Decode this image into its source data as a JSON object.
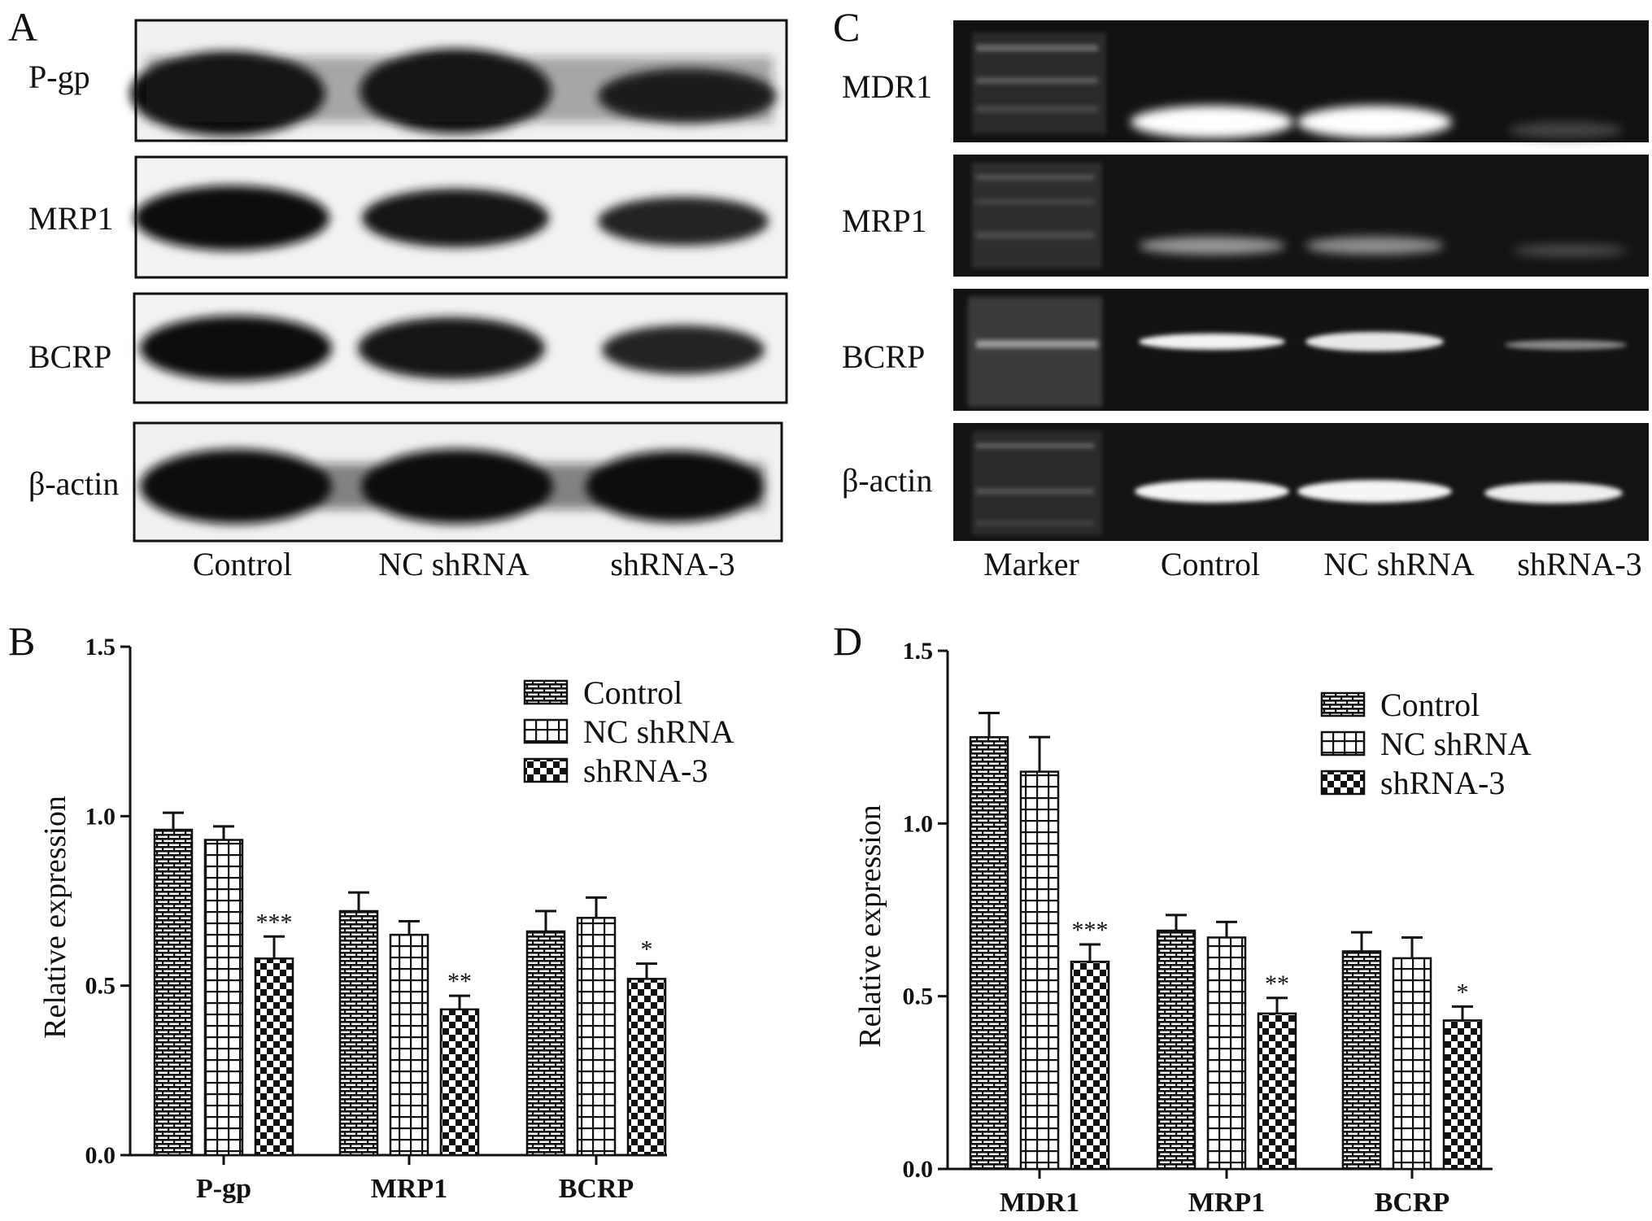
{
  "panels": {
    "A": {
      "letter": "A",
      "rows": [
        "P-gp",
        "MRP1",
        "BCRP",
        "β-actin"
      ],
      "lanes": [
        "Control",
        "NC shRNA",
        "shRNA-3"
      ]
    },
    "C": {
      "letter": "C",
      "rows": [
        "MDR1",
        "MRP1",
        "BCRP",
        "β-actin"
      ],
      "lanes": [
        "Marker",
        "Control",
        "NC shRNA",
        "shRNA-3"
      ]
    }
  },
  "chart_data": [
    {
      "panel": "B",
      "type": "bar",
      "ylabel": "Relative expression",
      "xlabel": "",
      "ylim": [
        0.0,
        1.5
      ],
      "yticks": [
        "0.0",
        "0.5",
        "1.0",
        "1.5"
      ],
      "categories": [
        "P-gp",
        "MRP1",
        "BCRP"
      ],
      "legend_position": "top-right",
      "series": [
        {
          "name": "Control",
          "pattern": "brick",
          "values": [
            0.96,
            0.72,
            0.66
          ],
          "errors": [
            0.05,
            0.055,
            0.06
          ]
        },
        {
          "name": "NC shRNA",
          "pattern": "grid",
          "values": [
            0.93,
            0.65,
            0.7
          ],
          "errors": [
            0.04,
            0.04,
            0.06
          ]
        },
        {
          "name": "shRNA-3",
          "pattern": "checker",
          "values": [
            0.58,
            0.43,
            0.52
          ],
          "errors": [
            0.065,
            0.04,
            0.045
          ]
        }
      ],
      "significance": [
        "***",
        "**",
        "*"
      ]
    },
    {
      "panel": "D",
      "type": "bar",
      "ylabel": "Relative expression",
      "xlabel": "",
      "ylim": [
        0.0,
        1.5
      ],
      "yticks": [
        "0.0",
        "0.5",
        "1.0",
        "1.5"
      ],
      "categories": [
        "MDR1",
        "MRP1",
        "BCRP"
      ],
      "legend_position": "top-right",
      "series": [
        {
          "name": "Control",
          "pattern": "brick",
          "values": [
            1.25,
            0.69,
            0.63
          ],
          "errors": [
            0.07,
            0.045,
            0.055
          ]
        },
        {
          "name": "NC shRNA",
          "pattern": "grid",
          "values": [
            1.15,
            0.67,
            0.61
          ],
          "errors": [
            0.1,
            0.045,
            0.06
          ]
        },
        {
          "name": "shRNA-3",
          "pattern": "checker",
          "values": [
            0.6,
            0.45,
            0.43
          ],
          "errors": [
            0.05,
            0.045,
            0.04
          ]
        }
      ],
      "significance": [
        "***",
        "**",
        "*"
      ]
    }
  ]
}
